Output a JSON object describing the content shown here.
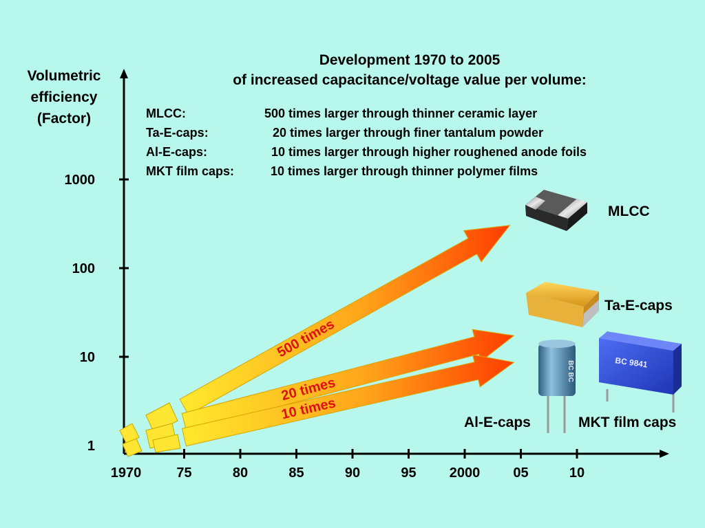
{
  "colors": {
    "background": "#b8f7eb",
    "arrow_start": "#ffe92e",
    "arrow_end": "#ff3d00",
    "arrow_label": "#dd1010"
  },
  "title": {
    "line1": "Development 1970 to 2005",
    "line2": "of increased capacitance/voltage value per volume:"
  },
  "info_rows": [
    {
      "type": "MLCC:",
      "text": "500 times larger through thinner ceramic layer"
    },
    {
      "type": "Ta-E-caps:",
      "text": "20 times larger through finer tantalum powder"
    },
    {
      "type": "Al-E-caps:",
      "text": "10 times larger through higher roughened anode foils"
    },
    {
      "type": "MKT film caps:",
      "text": "10 times larger through thinner polymer films"
    }
  ],
  "components": {
    "mlcc": "MLCC",
    "ta": "Ta-E-caps",
    "al": "Al-E-caps",
    "mkt": "MKT film caps"
  },
  "component_markings": {
    "mkt_main": "BC 9841",
    "al_side": "BC BC"
  },
  "chart_data": {
    "type": "line",
    "ylabel": "Volumetric efficiency (Factor)",
    "y_scale": "log",
    "ylim": [
      1,
      1000
    ],
    "y_ticks": [
      "1",
      "10",
      "100",
      "1000"
    ],
    "x_ticks": [
      "1970",
      "75",
      "80",
      "85",
      "90",
      "95",
      "2000",
      "05",
      "10"
    ],
    "x_values": [
      1970,
      1975,
      1980,
      1985,
      1990,
      1995,
      2000,
      2005,
      2010
    ],
    "series": [
      {
        "name": "MLCC",
        "label": "500 times",
        "points": [
          [
            1970,
            1
          ],
          [
            2005,
            500
          ]
        ]
      },
      {
        "name": "Ta-E-caps",
        "label": "20 times",
        "points": [
          [
            1970,
            1
          ],
          [
            2005,
            20
          ]
        ]
      },
      {
        "name": "Al-E-caps",
        "label": "10 times",
        "points": [
          [
            1970,
            1
          ],
          [
            2005,
            10
          ]
        ]
      }
    ]
  }
}
